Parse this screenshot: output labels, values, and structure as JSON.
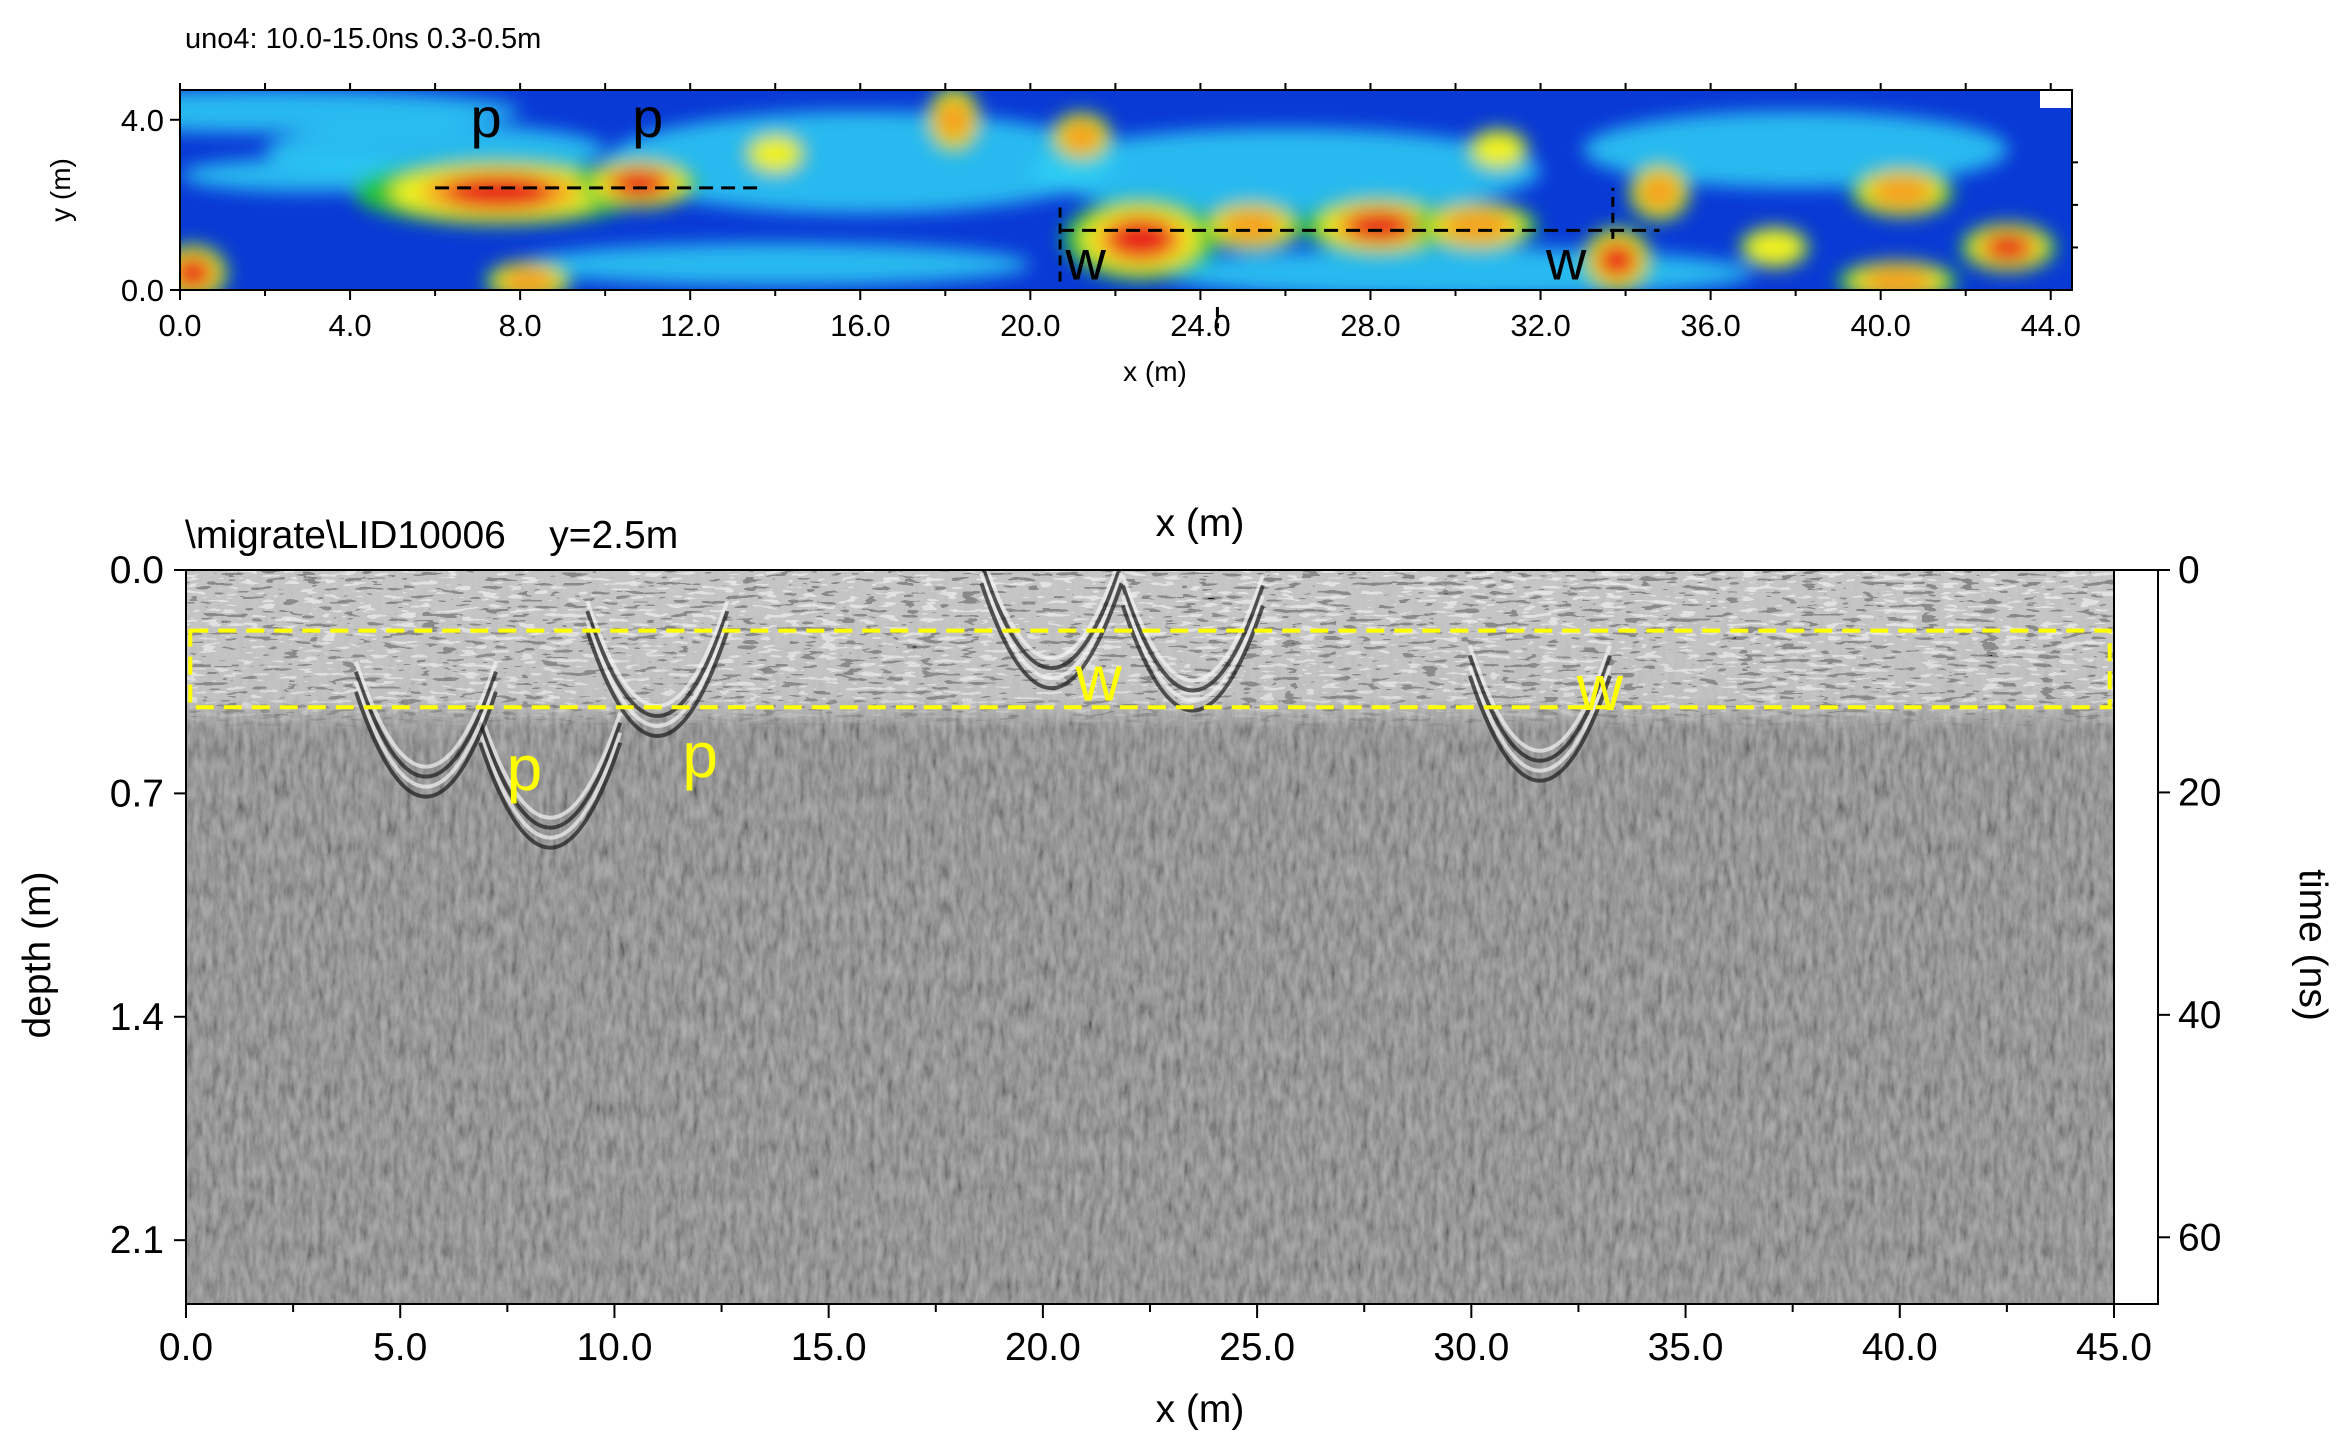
{
  "figure": {
    "chart_data": [
      {
        "type": "heatmap",
        "title": "uno4:  10.0-15.0ns  0.3-0.5m",
        "xlabel": "x (m)",
        "ylabel": "y (m)",
        "xlim": [
          0,
          44.5
        ],
        "ylim": [
          0,
          4.7
        ],
        "xticks": [
          "0.0",
          "4.0",
          "8.0",
          "12.0",
          "16.0",
          "20.0",
          "24.0",
          "28.0",
          "32.0",
          "36.0",
          "40.0",
          "44.0"
        ],
        "yticks": [
          "0.0",
          "4.0"
        ],
        "colors": {
          "background": "#0a3ad6",
          "scale": [
            "#0a2fcf",
            "#1f6ff2",
            "#2fd0f5",
            "#24c43a",
            "#f2f220",
            "#f5a020",
            "#e8231c"
          ]
        },
        "annotations": [
          {
            "label": "p",
            "x": 7.2,
            "y": 3.6
          },
          {
            "label": "p",
            "x": 11.0,
            "y": 3.6
          },
          {
            "label": "w",
            "x": 21.3,
            "y": 0.25
          },
          {
            "label": "w",
            "x": 32.6,
            "y": 0.25
          }
        ],
        "dashed_lines": [
          {
            "x": [
              6.0,
              13.7
            ],
            "y": [
              2.4,
              2.4
            ]
          },
          {
            "x": [
              20.7,
              34.8
            ],
            "y": [
              1.4,
              1.4
            ]
          }
        ],
        "marker_ticks": [
          {
            "x": 20.7,
            "y": [
              0.2,
              2.0
            ]
          },
          {
            "x": 24.4,
            "y": [
              -0.4,
              -0.9
            ]
          },
          {
            "x": 33.7,
            "y": [
              1.2,
              2.4
            ]
          }
        ],
        "hot_spots": [
          {
            "x": 7.5,
            "y": 2.3,
            "rx": 3.2,
            "ry": 0.6,
            "v": 1.0
          },
          {
            "x": 10.8,
            "y": 2.5,
            "rx": 1.2,
            "ry": 0.4,
            "v": 0.9
          },
          {
            "x": 0.3,
            "y": 0.4,
            "rx": 0.6,
            "ry": 0.5,
            "v": 0.95
          },
          {
            "x": 22.6,
            "y": 1.2,
            "rx": 1.6,
            "ry": 0.8,
            "v": 0.9
          },
          {
            "x": 28.2,
            "y": 1.5,
            "rx": 1.6,
            "ry": 0.5,
            "v": 0.95
          },
          {
            "x": 33.8,
            "y": 0.7,
            "rx": 0.6,
            "ry": 0.6,
            "v": 0.85
          },
          {
            "x": 43.0,
            "y": 1.0,
            "rx": 0.9,
            "ry": 0.4,
            "v": 0.95
          },
          {
            "x": 18.2,
            "y": 4.0,
            "rx": 0.4,
            "ry": 0.6,
            "v": 0.7
          },
          {
            "x": 21.2,
            "y": 3.6,
            "rx": 0.5,
            "ry": 0.4,
            "v": 0.6
          },
          {
            "x": 25.2,
            "y": 1.5,
            "rx": 1.0,
            "ry": 0.4,
            "v": 0.7
          },
          {
            "x": 30.5,
            "y": 1.5,
            "rx": 1.2,
            "ry": 0.4,
            "v": 0.7
          },
          {
            "x": 34.8,
            "y": 2.3,
            "rx": 0.5,
            "ry": 0.5,
            "v": 0.7
          },
          {
            "x": 40.5,
            "y": 2.3,
            "rx": 1.0,
            "ry": 0.4,
            "v": 0.65
          },
          {
            "x": 40.4,
            "y": 0.2,
            "rx": 1.2,
            "ry": 0.3,
            "v": 0.75
          },
          {
            "x": 14.0,
            "y": 3.2,
            "rx": 0.5,
            "ry": 0.3,
            "v": 0.55
          },
          {
            "x": 8.2,
            "y": 0.2,
            "rx": 0.8,
            "ry": 0.3,
            "v": 0.6
          },
          {
            "x": 31.0,
            "y": 3.3,
            "rx": 0.5,
            "ry": 0.3,
            "v": 0.55
          },
          {
            "x": 37.5,
            "y": 1.0,
            "rx": 0.6,
            "ry": 0.3,
            "v": 0.55
          }
        ]
      },
      {
        "type": "heatmap",
        "title": "\\migrate\\LID10006    y=2.5m",
        "top_label": "x (m)",
        "xlabel": "x (m)",
        "ylabel": "depth (m)",
        "y2label": "time (ns)",
        "xlim": [
          0,
          45
        ],
        "ylim": [
          0,
          2.3
        ],
        "y2lim": [
          0,
          66
        ],
        "xticks": [
          "0.0",
          "5.0",
          "10.0",
          "15.0",
          "20.0",
          "25.0",
          "30.0",
          "35.0",
          "40.0",
          "45.0"
        ],
        "yticks": [
          "0.0",
          "0.7",
          "1.4",
          "2.1"
        ],
        "y2ticks": [
          "0",
          "20",
          "40",
          "60"
        ],
        "colors": {
          "background": "#7d7d7d",
          "annotation": "#ffff00",
          "box": "#ffff00"
        },
        "highlight_box": {
          "x": [
            0.1,
            44.9
          ],
          "depth": [
            0.19,
            0.43
          ]
        },
        "annotations": [
          {
            "label": "p",
            "x": 7.9,
            "depth": 0.62
          },
          {
            "label": "p",
            "x": 12.0,
            "depth": 0.58
          },
          {
            "label": "w",
            "x": 21.3,
            "depth": 0.34
          },
          {
            "label": "w",
            "x": 33.0,
            "depth": 0.37
          }
        ],
        "hyperbolas": [
          {
            "x": 8.5,
            "depth": 0.98
          },
          {
            "x": 11.0,
            "depth": 0.63
          },
          {
            "x": 5.6,
            "depth": 0.82
          },
          {
            "x": 20.2,
            "depth": 0.48
          },
          {
            "x": 23.5,
            "depth": 0.55
          },
          {
            "x": 31.6,
            "depth": 0.77
          }
        ]
      }
    ]
  }
}
